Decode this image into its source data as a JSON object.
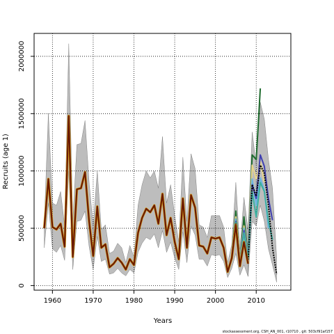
{
  "footer": "stockassessment.org, CSH_AN_001, r10710 , git: 503cf91af157",
  "chart_data": {
    "type": "line",
    "title": "",
    "xlabel": "Years",
    "ylabel": "Recruits (age 1)",
    "xlim": [
      1955.5,
      2018.5
    ],
    "ylim": [
      -40000,
      2200000
    ],
    "xticks": [
      1960,
      1970,
      1980,
      1990,
      2000,
      2010
    ],
    "yticks": [
      0,
      500000,
      1000000,
      1500000,
      2000000
    ],
    "ytick_labels": [
      "0",
      "500000",
      "1000000",
      "1500000",
      "2000000"
    ],
    "grid": true,
    "legend": "none",
    "x": [
      1958,
      1959,
      1960,
      1961,
      1962,
      1963,
      1964,
      1965,
      1966,
      1967,
      1968,
      1969,
      1970,
      1971,
      1972,
      1973,
      1974,
      1975,
      1976,
      1977,
      1978,
      1979,
      1980,
      1981,
      1982,
      1983,
      1984,
      1985,
      1986,
      1987,
      1988,
      1989,
      1990,
      1991,
      1992,
      1993,
      1994,
      1995,
      1996,
      1997,
      1998,
      1999,
      2000,
      2001,
      2002,
      2003,
      2004,
      2005,
      2006,
      2007,
      2008
    ],
    "estimate": [
      500000,
      930000,
      510000,
      490000,
      540000,
      340000,
      1480000,
      250000,
      840000,
      850000,
      990000,
      560000,
      260000,
      690000,
      330000,
      360000,
      160000,
      190000,
      240000,
      200000,
      140000,
      230000,
      180000,
      460000,
      590000,
      670000,
      640000,
      700000,
      540000,
      800000,
      440000,
      590000,
      380000,
      230000,
      760000,
      330000,
      790000,
      680000,
      350000,
      340000,
      280000,
      420000,
      410000,
      420000,
      330000,
      120000,
      240000,
      530000,
      170000,
      380000,
      190000
    ],
    "ci_upper": [
      540000,
      1500000,
      720000,
      700000,
      820000,
      520000,
      2110000,
      560000,
      1230000,
      1240000,
      1440000,
      900000,
      520000,
      1000000,
      490000,
      530000,
      280000,
      300000,
      370000,
      330000,
      200000,
      350000,
      250000,
      700000,
      880000,
      1000000,
      940000,
      1000000,
      850000,
      1300000,
      720000,
      880000,
      610000,
      380000,
      1120000,
      560000,
      1150000,
      1020000,
      530000,
      510000,
      420000,
      610000,
      610000,
      610000,
      510000,
      200000,
      360000,
      900000,
      320000,
      770000,
      480000
    ],
    "ci_lower": [
      330000,
      720000,
      320000,
      290000,
      350000,
      220000,
      1000000,
      140000,
      560000,
      570000,
      650000,
      340000,
      140000,
      430000,
      210000,
      230000,
      100000,
      110000,
      150000,
      110000,
      85000,
      140000,
      110000,
      290000,
      370000,
      420000,
      400000,
      450000,
      330000,
      480000,
      290000,
      380000,
      240000,
      140000,
      470000,
      200000,
      520000,
      440000,
      230000,
      230000,
      170000,
      270000,
      260000,
      270000,
      210000,
      70000,
      150000,
      280000,
      90000,
      180000,
      80000
    ],
    "retro_series": [
      {
        "color": "#1e6b2e",
        "x": [
          2003,
          2004,
          2005,
          2006,
          2007,
          2008,
          2009,
          2010,
          2011
        ],
        "y": [
          120000,
          250000,
          650000,
          200000,
          600000,
          260000,
          1140000,
          1100000,
          1720000
        ]
      },
      {
        "color": "#e8d58a",
        "x": [
          2003,
          2004,
          2005,
          2006,
          2007,
          2008,
          2009,
          2010,
          2011,
          2012
        ],
        "y": [
          120000,
          240000,
          600000,
          200000,
          520000,
          250000,
          1050000,
          930000,
          1080000,
          900000
        ]
      },
      {
        "color": "#6db6e0",
        "x": [
          2003,
          2004,
          2005,
          2006,
          2007,
          2008,
          2009,
          2010,
          2011,
          2012,
          2013
        ],
        "y": [
          120000,
          240000,
          580000,
          190000,
          500000,
          240000,
          930000,
          700000,
          940000,
          830000,
          500000
        ]
      },
      {
        "color": "#4040b0",
        "x": [
          2003,
          2004,
          2005,
          2006,
          2007,
          2008,
          2009,
          2010,
          2011,
          2012,
          2013,
          2014
        ],
        "y": [
          120000,
          240000,
          560000,
          180000,
          480000,
          230000,
          880000,
          760000,
          1140000,
          1040000,
          760000,
          570000
        ]
      },
      {
        "color": "#3cb0a0",
        "x": [
          2003,
          2004,
          2005,
          2006,
          2007,
          2008,
          2009,
          2010,
          2011,
          2012,
          2013,
          2014
        ],
        "y": [
          120000,
          240000,
          550000,
          180000,
          460000,
          220000,
          820000,
          600000,
          900000,
          820000,
          560000,
          400000
        ]
      },
      {
        "color": "#000000",
        "x": [
          2003,
          2004,
          2005,
          2006,
          2007,
          2008,
          2009,
          2010,
          2011,
          2012,
          2013,
          2014,
          2015
        ],
        "y": [
          120000,
          240000,
          540000,
          175000,
          380000,
          200000,
          880000,
          780000,
          1050000,
          980000,
          700000,
          330000,
          100000
        ]
      }
    ],
    "terminal_x": [
      2008,
      2009,
      2010,
      2011,
      2012,
      2013,
      2014,
      2015
    ],
    "terminal_upper": [
      480000,
      1340000,
      1050000,
      1600000,
      1450000,
      1100000,
      850000,
      250000
    ],
    "terminal_lower": [
      80000,
      560000,
      520000,
      700000,
      560000,
      320000,
      180000,
      30000
    ]
  }
}
